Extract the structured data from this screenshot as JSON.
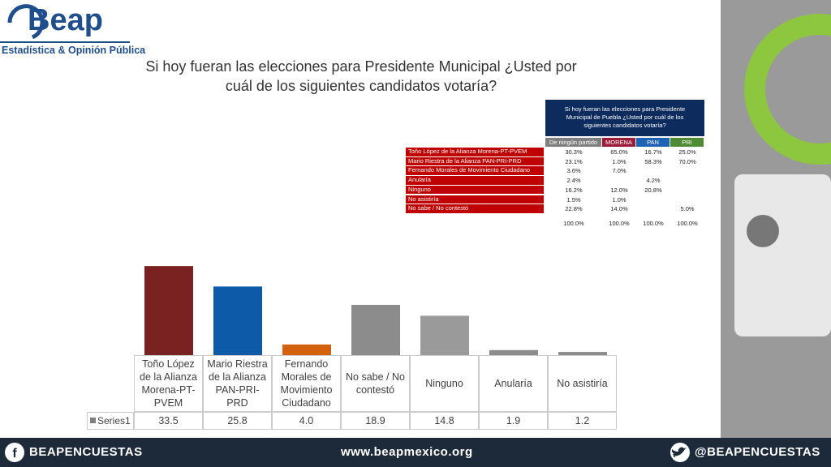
{
  "logo": {
    "name": "Beap",
    "tagline": "Estadística & Opinión Pública"
  },
  "chart_data": {
    "type": "bar",
    "title": "Si hoy fueran las elecciones para Presidente Municipal ¿Usted por cuál de los siguientes candidatos votaría?",
    "categories": [
      "Toño López de la Alianza Morena-PT-PVEM",
      "Mario Riestra de la Alianza PAN-PRI-PRD",
      "Fernando Morales de Movimiento Ciudadano",
      "No sabe / No contestó",
      "Ninguno",
      "Anularía",
      "No asistiría"
    ],
    "series": [
      {
        "name": "Series1",
        "color": "#7f7f7f",
        "colors": [
          "#7a2222",
          "#0d5aa8",
          "#d2600c",
          "#8c8c8c",
          "#9a9a9a",
          "#8c8c8c",
          "#8c8c8c"
        ],
        "values": [
          33.5,
          25.8,
          4.0,
          18.9,
          14.8,
          1.9,
          1.2
        ],
        "value_labels": [
          "33.5",
          "25.8",
          "4.0",
          "18.9",
          "14.8",
          "1.9",
          "1.2"
        ]
      }
    ]
  },
  "table": {
    "title": "Si hoy fueran las elecciones para Presidente Municipal de Puebla ¿Usted por cuál de los siguientes candidatos votaría?",
    "columns": [
      "De ningún partido",
      "MORENA",
      "PAN",
      "PRI"
    ],
    "rows": [
      {
        "label": "Toño López de la Alianza Morena-PT-PVEM",
        "cells": [
          "30.3%",
          "65.0%",
          "16.7%",
          "25.0%"
        ]
      },
      {
        "label": "Mario Riestra de la Alianza PAN-PRI-PRD",
        "cells": [
          "23.1%",
          "1.0%",
          "58.3%",
          "70.0%"
        ]
      },
      {
        "label": "Fernando Morales de Movimiento Ciudadano",
        "cells": [
          "3.6%",
          "7.0%",
          null,
          null
        ]
      },
      {
        "label": "Anularía",
        "cells": [
          "2.4%",
          null,
          "4.2%",
          null
        ]
      },
      {
        "label": "Ninguno",
        "cells": [
          "16.2%",
          "12.0%",
          "20.8%",
          null
        ]
      },
      {
        "label": "No asistiría",
        "cells": [
          "1.5%",
          "1.0%",
          null,
          null
        ]
      },
      {
        "label": "No sabe / No contestó",
        "cells": [
          "22.8%",
          "14.0%",
          null,
          "5.0%"
        ]
      }
    ],
    "totals": [
      "100.0%",
      "100.0%",
      "100.0%",
      "100.0%"
    ]
  },
  "footer": {
    "facebook": "BEAPENCUESTAS",
    "website": "www.beapmexico.org",
    "twitter": "@BEAPENCUESTAS"
  }
}
